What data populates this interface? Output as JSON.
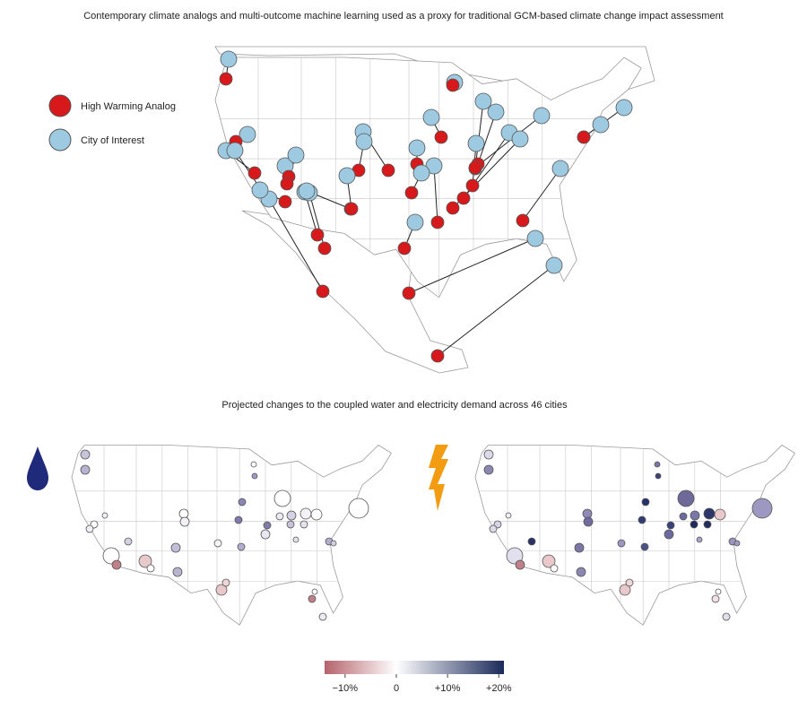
{
  "title": "Contemporary climate analogs and multi-outcome machine learning used as a proxy for traditional GCM-based climate change impact assessment",
  "legend": [
    {
      "label": "High Warming Analog",
      "color": "#d7191c"
    },
    {
      "label": "City of Interest",
      "color": "#9ecae1"
    }
  ],
  "subtitle": "Projected changes to the coupled water and electricity demand across 46 cities",
  "colorbar": {
    "lim": [
      -14,
      21
    ],
    "colors": [
      "#b5636b",
      "#ffffff",
      "#1b2a5a"
    ],
    "ticks": [
      {
        "value": -10,
        "label": "−10%"
      },
      0,
      {
        "value": 10,
        "label": "+10%"
      },
      {
        "value": 20,
        "label": "+20%"
      }
    ]
  }
}
